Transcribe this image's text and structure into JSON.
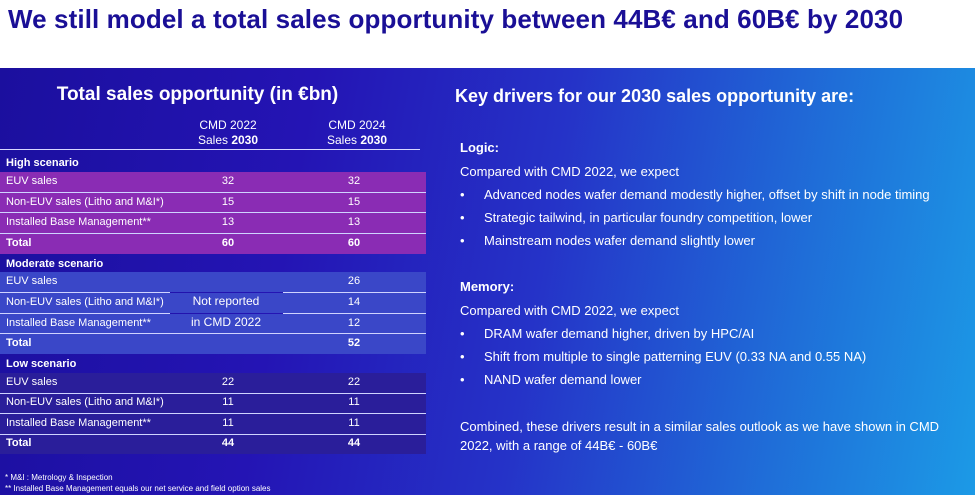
{
  "title": "We still model a total sales opportunity between 44B€ and 60B€ by 2030",
  "left": {
    "title": "Total sales opportunity (in €bn)",
    "col1": {
      "line1": "CMD 2022",
      "line2_prefix": "Sales ",
      "line2_bold": "2030"
    },
    "col2": {
      "line1": "CMD 2024",
      "line2_prefix": "Sales ",
      "line2_bold": "2030"
    },
    "high": {
      "label": "High scenario",
      "rows": [
        {
          "label": "EUV sales",
          "v1": "32",
          "v2": "32"
        },
        {
          "label": "Non-EUV sales (Litho and M&I*)",
          "v1": "15",
          "v2": "15"
        },
        {
          "label": "Installed Base Management**",
          "v1": "13",
          "v2": "13"
        }
      ],
      "total": {
        "label": "Total",
        "v1": "60",
        "v2": "60"
      }
    },
    "moderate": {
      "label": "Moderate scenario",
      "not_reported_1": "Not reported",
      "not_reported_2": "in CMD 2022",
      "rows": [
        {
          "label": "EUV sales",
          "v2": "26"
        },
        {
          "label": "Non-EUV sales (Litho and M&I*)",
          "v2": "14"
        },
        {
          "label": "Installed Base Management**",
          "v2": "12"
        }
      ],
      "total": {
        "label": "Total",
        "v2": "52"
      }
    },
    "low": {
      "label": "Low scenario",
      "rows": [
        {
          "label": "EUV sales",
          "v1": "22",
          "v2": "22"
        },
        {
          "label": "Non-EUV sales (Litho and M&I*)",
          "v1": "11",
          "v2": "11"
        },
        {
          "label": "Installed Base Management**",
          "v1": "11",
          "v2": "11"
        }
      ],
      "total": {
        "label": "Total",
        "v1": "44",
        "v2": "44"
      }
    },
    "footnote1": "* M&I : Metrology & Inspection",
    "footnote2": "** Installed Base Management equals our net service and field option sales"
  },
  "right": {
    "title": "Key drivers for our 2030 sales opportunity are:",
    "logic": {
      "heading": "Logic:",
      "intro": "Compared with CMD 2022, we expect",
      "bullets": [
        "Advanced nodes wafer demand modestly higher, offset by shift in node timing",
        "Strategic tailwind, in particular foundry competition, lower",
        "Mainstream nodes wafer demand slightly lower"
      ]
    },
    "memory": {
      "heading": "Memory:",
      "intro": "Compared with CMD 2022, we expect",
      "bullets": [
        "DRAM wafer demand higher, driven by HPC/AI",
        "Shift from multiple to single patterning EUV (0.33 NA and 0.55 NA)",
        "NAND wafer demand lower"
      ]
    },
    "bullet_glyph": "•",
    "combined": "Combined, these drivers result in a similar sales outlook as we have shown in CMD 2022, with a range of 44B€ - 60B€"
  }
}
